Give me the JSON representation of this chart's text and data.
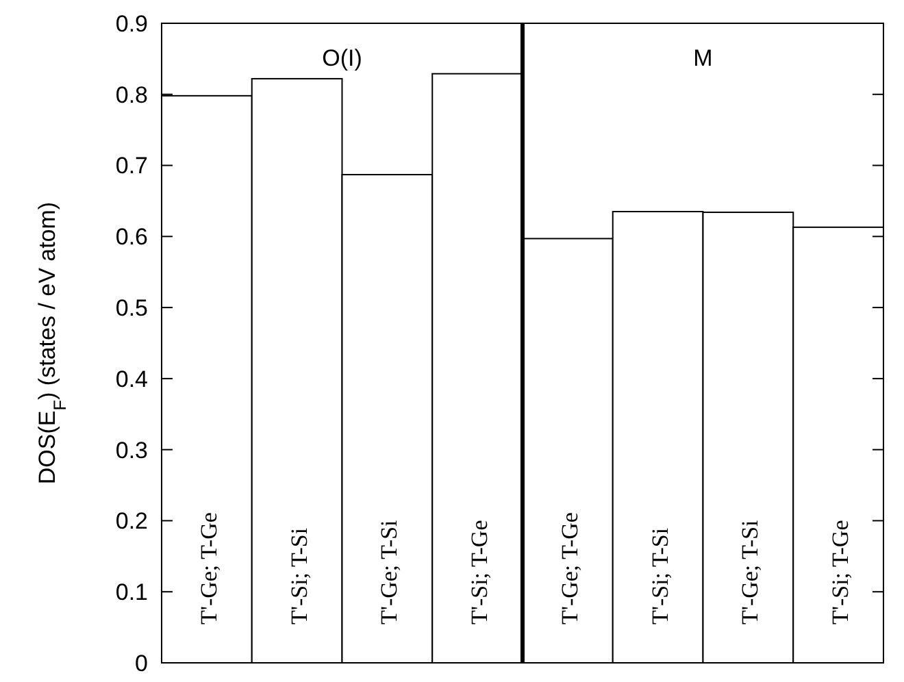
{
  "chart_data": {
    "type": "bar",
    "ylabel": "DOS(E$_{F}$) (states / eV atom)",
    "categories": [
      "T'-Ge; T-Ge",
      "T'-Si; T-Si",
      "T'-Ge; T-Si",
      "T'-Si; T-Ge",
      "T'-Ge; T-Ge",
      "T'-Si; T-Si",
      "T'-Ge; T-Si",
      "T'-Si; T-Ge"
    ],
    "values": [
      0.798,
      0.822,
      0.687,
      0.829,
      0.597,
      0.635,
      0.634,
      0.613
    ],
    "color": "#ffffff",
    "ylim": [
      0,
      0.9
    ],
    "yticks": [
      0,
      0.1,
      0.2,
      0.3,
      0.4,
      0.5,
      0.6,
      0.7,
      0.8,
      0.9
    ],
    "annotations": [
      "O(I)",
      "M"
    ]
  }
}
